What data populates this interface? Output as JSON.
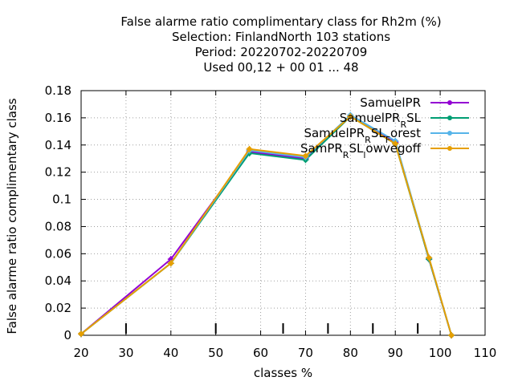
{
  "chart_data": {
    "type": "line",
    "title_lines": [
      "False alarme ratio complimentary class  for Rh2m (%)",
      "Selection: FinlandNorth    103 stations",
      "Period: 20220702-20220709",
      "Used  00,12  + 00 01 ... 48"
    ],
    "xlabel": "classes %",
    "ylabel": "False alarme ratio complimentary class",
    "xlim": [
      20,
      110
    ],
    "ylim": [
      0,
      0.18
    ],
    "xticks": [
      20,
      30,
      40,
      50,
      60,
      70,
      80,
      90,
      100,
      110
    ],
    "xtick_labels": [
      "20",
      "30",
      "40",
      "50",
      "60",
      "70",
      "80",
      "90",
      "100",
      "110"
    ],
    "yticks": [
      0,
      0.02,
      0.04,
      0.06,
      0.08,
      0.1,
      0.12,
      0.14,
      0.16,
      0.18
    ],
    "ytick_labels": [
      "0",
      "0.02",
      "0.04",
      "0.06",
      "0.08",
      "0.1",
      "0.12",
      "0.14",
      "0.16",
      "0.18"
    ],
    "minor_bottom_ticks": [
      30,
      50,
      65,
      75,
      85,
      95
    ],
    "grid": true,
    "legend_position": "top-right",
    "series": [
      {
        "name": "SamuelPR",
        "name_parts": [
          [
            "SamuelPR",
            false
          ]
        ],
        "color": "#9400d3",
        "x": [
          20,
          40,
          57.5,
          70,
          80,
          90,
          97.5,
          102.5
        ],
        "y": [
          0.001,
          0.056,
          0.135,
          0.13,
          0.161,
          0.142,
          0.056,
          0.0
        ]
      },
      {
        "name": "SamuelPR_RSL",
        "name_parts": [
          [
            "SamuelPR",
            false
          ],
          [
            "R",
            true
          ],
          [
            "SL",
            false
          ]
        ],
        "color": "#009e73",
        "x": [
          20,
          40,
          57.5,
          70,
          80,
          90,
          97.5,
          102.5
        ],
        "y": [
          0.001,
          0.053,
          0.134,
          0.129,
          0.161,
          0.141,
          0.056,
          0.0
        ]
      },
      {
        "name": "SamuelPR_RSL_Forest",
        "name_parts": [
          [
            "SamuelPR",
            false
          ],
          [
            "R",
            true
          ],
          [
            "SL",
            false
          ],
          [
            "F",
            true
          ],
          [
            "orest",
            false
          ]
        ],
        "color": "#56b4e9",
        "x": [
          20,
          40,
          57.5,
          70,
          80,
          90,
          97.5,
          102.5
        ],
        "y": [
          0.001,
          0.053,
          0.136,
          0.131,
          0.162,
          0.143,
          0.057,
          0.0
        ]
      },
      {
        "name": "SamPR_RSL_lowvegoff",
        "name_parts": [
          [
            "SamPR",
            false
          ],
          [
            "R",
            true
          ],
          [
            "SL",
            false
          ],
          [
            "l",
            true
          ],
          [
            "owvegoff",
            false
          ]
        ],
        "color": "#e69f00",
        "x": [
          20,
          40,
          57.5,
          70,
          80,
          90,
          97.5,
          102.5
        ],
        "y": [
          0.001,
          0.053,
          0.137,
          0.132,
          0.161,
          0.141,
          0.057,
          0.0
        ]
      }
    ]
  }
}
